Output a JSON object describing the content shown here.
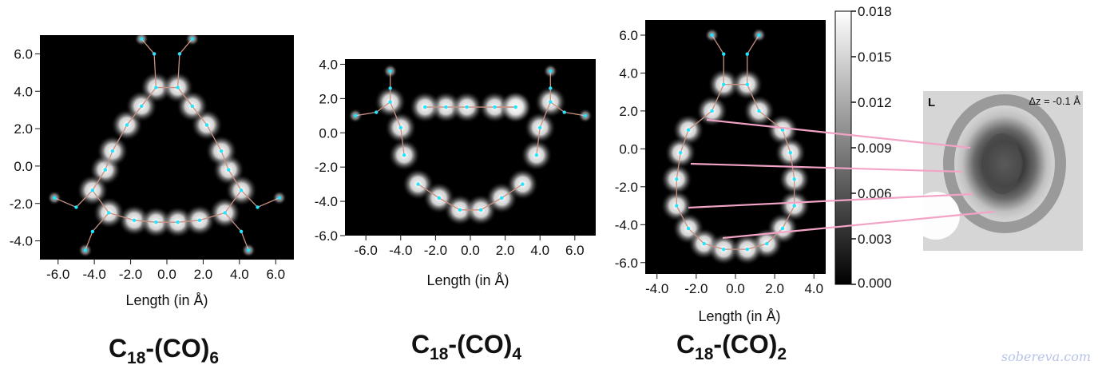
{
  "colors": {
    "plot_bg": "#000000",
    "bond": "#c89080",
    "atom": "#22e6ff",
    "connector": "#f2a3c6",
    "stm_bg": "#d6d6d6",
    "watermark": "#b8c4e8"
  },
  "molecules": [
    {
      "title_main": "C",
      "title_sub1": "18",
      "title_mid": "-(CO)",
      "title_sub2": "6"
    },
    {
      "title_main": "C",
      "title_sub1": "18",
      "title_mid": "-(CO)",
      "title_sub2": "4"
    },
    {
      "title_main": "C",
      "title_sub1": "18",
      "title_mid": "-(CO)",
      "title_sub2": "2"
    }
  ],
  "colorbar": {
    "ticks": [
      "0.018",
      "0.015",
      "0.012",
      "0.009",
      "0.006",
      "0.003",
      "0.000"
    ],
    "range": [
      0.0,
      0.018
    ]
  },
  "stm_panel": {
    "panel_letter": "L",
    "dz_label": "Δz = -0.1 Å"
  },
  "watermark": "sobereva.com",
  "chart_data": [
    {
      "type": "heatmap",
      "title": "C18-(CO)6",
      "xlabel": "Length (in Å)",
      "ylabel": "",
      "x_ticks": [
        "-6.0",
        "-4.0",
        "-2.0",
        "0.0",
        "2.0",
        "4.0",
        "6.0"
      ],
      "y_ticks": [
        "6.0",
        "4.0",
        "2.0",
        "0.0",
        "-2.0",
        "-4.0"
      ],
      "xlim": [
        -7.0,
        7.0
      ],
      "ylim": [
        -5.0,
        7.0
      ],
      "carbon_positions": [
        [
          -0.6,
          4.2
        ],
        [
          0.6,
          4.2
        ],
        [
          -2.2,
          2.2
        ],
        [
          -1.4,
          3.2
        ],
        [
          2.2,
          2.2
        ],
        [
          1.4,
          3.2
        ],
        [
          -3.4,
          -0.2
        ],
        [
          -3.0,
          0.8
        ],
        [
          3.4,
          -0.2
        ],
        [
          3.0,
          0.8
        ],
        [
          -1.8,
          -2.9
        ],
        [
          -0.6,
          -3.0
        ],
        [
          0.6,
          -3.0
        ],
        [
          1.8,
          -2.9
        ],
        [
          -4.1,
          -1.3
        ],
        [
          -3.2,
          -2.5
        ],
        [
          4.1,
          -1.3
        ],
        [
          3.2,
          -2.5
        ]
      ],
      "co_groups": [
        [
          [
            -0.7,
            6.0
          ],
          [
            -1.4,
            6.8
          ]
        ],
        [
          [
            0.7,
            6.0
          ],
          [
            1.4,
            6.8
          ]
        ],
        [
          [
            -5.0,
            -2.2
          ],
          [
            -6.2,
            -1.7
          ]
        ],
        [
          [
            -4.1,
            -3.5
          ],
          [
            -4.5,
            -4.5
          ]
        ],
        [
          [
            5.0,
            -2.2
          ],
          [
            6.2,
            -1.7
          ]
        ],
        [
          [
            4.1,
            -3.5
          ],
          [
            4.5,
            -4.5
          ]
        ]
      ]
    },
    {
      "type": "heatmap",
      "title": "C18-(CO)4",
      "xlabel": "Length (in Å)",
      "ylabel": "",
      "x_ticks": [
        "-6.0",
        "-4.0",
        "-2.0",
        "0.0",
        "2.0",
        "4.0",
        "6.0"
      ],
      "y_ticks": [
        "4.0",
        "2.0",
        "0.0",
        "-2.0",
        "-4.0",
        "-6.0"
      ],
      "xlim": [
        -7.2,
        7.2
      ],
      "ylim": [
        -6.0,
        4.3
      ],
      "carbon_positions": [
        [
          -1.4,
          1.5
        ],
        [
          -0.2,
          1.5
        ],
        [
          1.4,
          1.5
        ],
        [
          2.6,
          1.5
        ],
        [
          -4.0,
          0.3
        ],
        [
          -3.8,
          -1.3
        ],
        [
          -3.0,
          -3.0
        ],
        [
          -1.8,
          -3.8
        ],
        [
          -0.6,
          -4.5
        ],
        [
          0.6,
          -4.5
        ],
        [
          1.8,
          -3.8
        ],
        [
          3.0,
          -3.0
        ],
        [
          4.0,
          0.3
        ],
        [
          3.8,
          -1.3
        ],
        [
          -2.6,
          1.5
        ],
        [
          2.6,
          1.5
        ],
        [
          -4.6,
          1.8
        ],
        [
          4.6,
          1.8
        ]
      ],
      "co_groups": [
        [
          [
            -5.4,
            1.2
          ],
          [
            -6.6,
            1.0
          ]
        ],
        [
          [
            -4.6,
            2.6
          ],
          [
            -4.6,
            3.6
          ]
        ],
        [
          [
            5.4,
            1.2
          ],
          [
            6.6,
            1.0
          ]
        ],
        [
          [
            4.6,
            2.6
          ],
          [
            4.6,
            3.6
          ]
        ]
      ]
    },
    {
      "type": "heatmap",
      "title": "C18-(CO)2",
      "xlabel": "Length (in Å)",
      "ylabel": "",
      "x_ticks": [
        "-4.0",
        "-2.0",
        "0.0",
        "2.0",
        "4.0"
      ],
      "y_ticks": [
        "6.0",
        "4.0",
        "2.0",
        "0.0",
        "-2.0",
        "-4.0",
        "-6.0"
      ],
      "xlim": [
        -4.6,
        4.6
      ],
      "ylim": [
        -6.6,
        6.8
      ],
      "carbon_positions": [
        [
          -0.6,
          3.4
        ],
        [
          0.6,
          3.4
        ],
        [
          -1.2,
          2.0
        ],
        [
          1.2,
          2.0
        ],
        [
          -2.4,
          1.0
        ],
        [
          2.4,
          1.0
        ],
        [
          -2.8,
          -0.2
        ],
        [
          2.8,
          -0.2
        ],
        [
          -3.0,
          -1.6
        ],
        [
          3.0,
          -1.6
        ],
        [
          -3.0,
          -3.0
        ],
        [
          3.0,
          -3.0
        ],
        [
          -2.4,
          -4.2
        ],
        [
          2.4,
          -4.2
        ],
        [
          -1.6,
          -5.0
        ],
        [
          1.6,
          -5.0
        ],
        [
          -0.6,
          -5.3
        ],
        [
          0.6,
          -5.3
        ]
      ],
      "co_groups": [
        [
          [
            -0.6,
            5.0
          ],
          [
            -1.2,
            6.0
          ]
        ],
        [
          [
            0.6,
            5.0
          ],
          [
            1.2,
            6.0
          ]
        ]
      ]
    }
  ]
}
